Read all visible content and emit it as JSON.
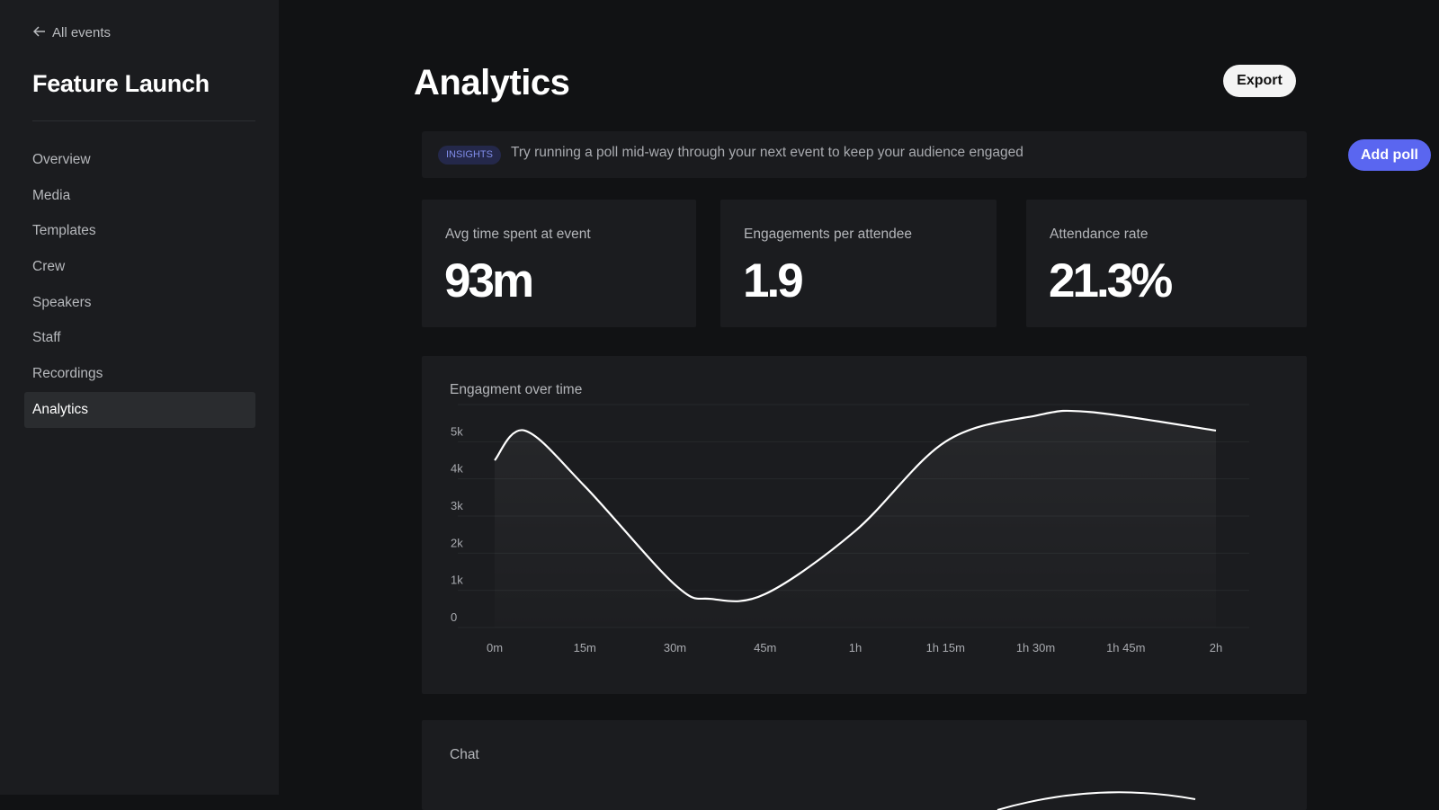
{
  "sidebar": {
    "back_label": "All events",
    "event_title": "Feature Launch",
    "items": [
      {
        "label": "Overview"
      },
      {
        "label": "Media"
      },
      {
        "label": "Templates"
      },
      {
        "label": "Crew"
      },
      {
        "label": "Speakers"
      },
      {
        "label": "Staff"
      },
      {
        "label": "Recordings"
      },
      {
        "label": "Analytics",
        "active": true
      }
    ]
  },
  "header": {
    "title": "Analytics",
    "export_label": "Export"
  },
  "insights": {
    "badge": "INSIGHTS",
    "text": "Try running a poll mid-way through your next event to keep your audience engaged",
    "button": "Add poll"
  },
  "stats": [
    {
      "label": "Avg time spent at event",
      "value": "93m"
    },
    {
      "label": "Engagements per attendee",
      "value": "1.9"
    },
    {
      "label": "Attendance rate",
      "value": "21.3%"
    }
  ],
  "chat": {
    "title": "Chat"
  },
  "colors": {
    "accent": "#5a66f0",
    "badge_text": "#7f8ce8"
  },
  "chart_data": {
    "type": "area",
    "title": "Engagment over time",
    "x_labels": [
      "0m",
      "15m",
      "30m",
      "45m",
      "1h",
      "1h 15m",
      "1h 30m",
      "1h 45m",
      "2h"
    ],
    "y_labels": [
      "0",
      "1k",
      "2k",
      "3k",
      "4k",
      "5k"
    ],
    "x_minutes": [
      0,
      5,
      15,
      30,
      36,
      45,
      60,
      75,
      90,
      99,
      120
    ],
    "values": [
      4500,
      5300,
      3800,
      1150,
      770,
      900,
      2600,
      5000,
      5700,
      5800,
      5300
    ],
    "ylim": [
      0,
      6000
    ],
    "xlim": [
      0,
      120
    ],
    "grid": true
  }
}
